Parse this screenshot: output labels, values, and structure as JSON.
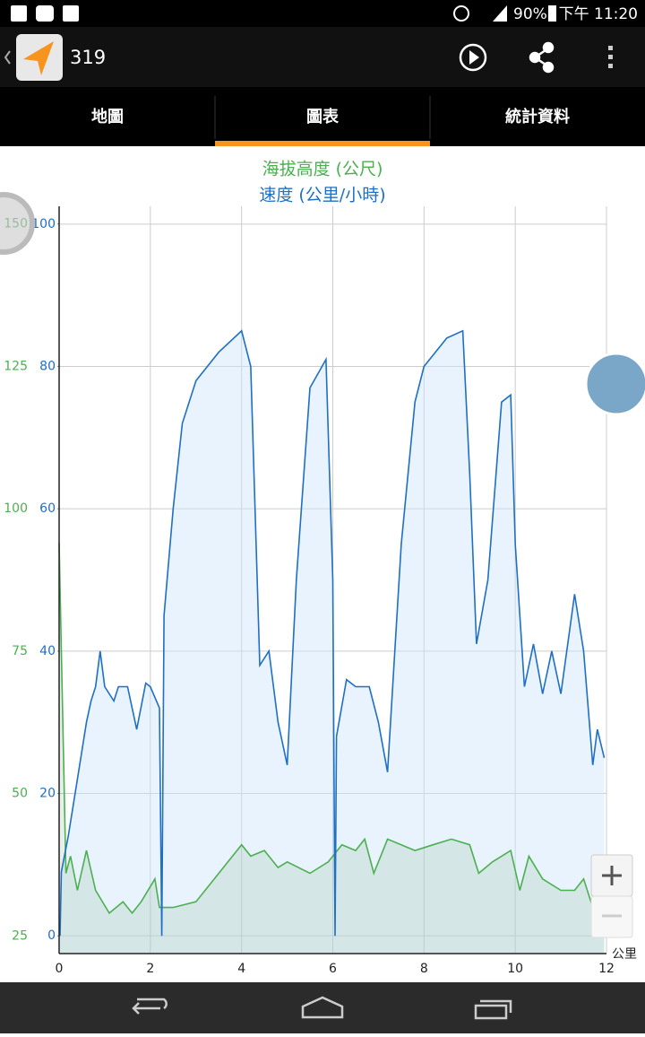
{
  "status_bar": {
    "battery": "90%",
    "time": "下午 11:20"
  },
  "app_bar": {
    "title": "319"
  },
  "tabs": [
    "地圖",
    "圖表",
    "統計資料"
  ],
  "chart_data": {
    "type": "area",
    "xlabel": "公里",
    "xlim": [
      0,
      12
    ],
    "xticks": [
      0,
      2,
      4,
      6,
      8,
      10,
      12
    ],
    "ylim": [
      -2.5,
      102.5
    ],
    "yticks": [
      0,
      20,
      40,
      60,
      80,
      100
    ],
    "y2lim": [
      21.9,
      153.1
    ],
    "y2ticks": [
      25,
      50,
      75,
      100,
      125,
      150
    ],
    "grid": true,
    "series": [
      {
        "name": "速度 (公里/小時)",
        "color": "#1f6fc4",
        "x": [
          0.02,
          0.05,
          0.2,
          0.4,
          0.6,
          0.7,
          0.8,
          0.9,
          1.0,
          1.2,
          1.3,
          1.5,
          1.7,
          1.9,
          2.0,
          2.2,
          2.25,
          2.3,
          2.5,
          2.7,
          3.0,
          3.5,
          4.0,
          4.2,
          4.4,
          4.6,
          4.8,
          5.0,
          5.2,
          5.5,
          5.85,
          6.0,
          6.05,
          6.08,
          6.3,
          6.5,
          6.8,
          7.0,
          7.2,
          7.5,
          7.8,
          8.0,
          8.5,
          8.85,
          9.0,
          9.15,
          9.4,
          9.7,
          9.9,
          10.0,
          10.2,
          10.4,
          10.6,
          10.8,
          11.0,
          11.3,
          11.5,
          11.7,
          11.8,
          11.95
        ],
        "values": [
          0,
          9,
          14,
          22,
          30,
          33,
          35,
          40,
          35,
          33,
          35,
          35,
          29,
          35.5,
          35,
          32,
          0,
          45,
          60,
          72,
          78,
          82,
          85,
          80,
          38,
          40,
          30,
          24,
          50,
          77,
          81,
          50,
          0,
          28,
          36,
          35,
          35,
          30,
          23,
          55,
          75,
          80,
          84,
          85,
          65,
          41,
          50,
          75,
          76,
          55,
          35,
          41,
          34,
          40,
          34,
          48,
          40,
          24,
          29,
          25
        ]
      },
      {
        "name": "海拔高度 (公尺)",
        "color": "#4caf50",
        "axis": "y2",
        "x": [
          0.0,
          0.15,
          0.25,
          0.4,
          0.6,
          0.8,
          1.1,
          1.4,
          1.6,
          1.8,
          2.1,
          2.2,
          2.5,
          3.0,
          3.5,
          4.0,
          4.2,
          4.5,
          4.8,
          5.0,
          5.5,
          5.9,
          6.2,
          6.5,
          6.7,
          6.9,
          7.2,
          7.5,
          7.8,
          8.2,
          8.6,
          9.0,
          9.2,
          9.5,
          9.9,
          10.1,
          10.3,
          10.6,
          11.0,
          11.3,
          11.5,
          11.7,
          11.95
        ],
        "values": [
          94,
          36,
          39,
          33,
          40,
          33,
          29,
          31,
          29,
          31,
          35,
          30,
          30,
          31,
          36,
          41,
          39,
          40,
          37,
          38,
          36,
          38,
          41,
          40,
          42,
          36,
          42,
          41,
          40,
          41,
          42,
          41,
          36,
          38,
          40,
          33,
          39,
          35,
          33,
          33,
          35,
          30,
          29
        ]
      }
    ]
  }
}
